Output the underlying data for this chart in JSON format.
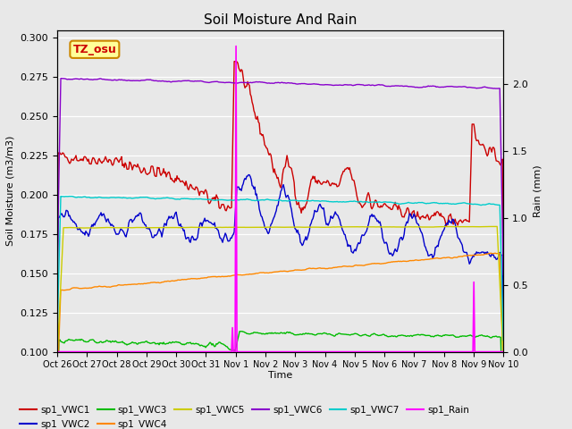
{
  "title": "Soil Moisture And Rain",
  "xlabel": "Time",
  "ylabel_left": "Soil Moisture (m3/m3)",
  "ylabel_right": "Rain (mm)",
  "annotation": "TZ_osu",
  "ylim_left": [
    0.1,
    0.305
  ],
  "ylim_right": [
    0.0,
    2.4
  ],
  "fig_bg": "#e8e8e8",
  "plot_bg": "#e8e8e8",
  "line_colors": {
    "VWC1": "#cc0000",
    "VWC2": "#0000cc",
    "VWC3": "#00bb00",
    "VWC4": "#ff8800",
    "VWC5": "#cccc00",
    "VWC6": "#8800cc",
    "VWC7": "#00cccc",
    "Rain": "#ff00ff"
  },
  "xtick_labels": [
    "Oct 26",
    "Oct 27",
    "Oct 28",
    "Oct 29",
    "Oct 30",
    "Oct 31",
    "Nov 1",
    "Nov 2",
    "Nov 3",
    "Nov 4",
    "Nov 5",
    "Nov 6",
    "Nov 7",
    "Nov 8",
    "Nov 9",
    "Nov 10"
  ]
}
